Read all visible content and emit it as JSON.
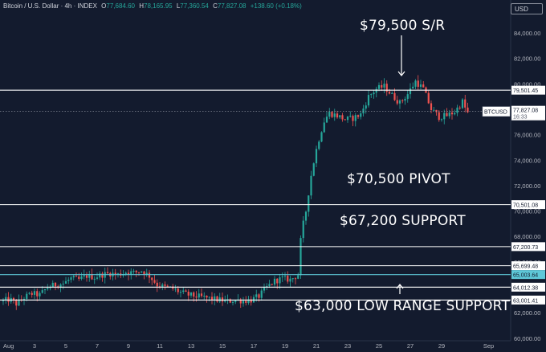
{
  "header": {
    "title": "Bitcoin / U.S. Dollar · 4h · INDEX",
    "open_label": "O",
    "open": "77,684.60",
    "high_label": "H",
    "high": "78,165.95",
    "low_label": "L",
    "low": "77,360.54",
    "close_label": "C",
    "close": "77,827.08",
    "change": "+138.60 (+0.18%)"
  },
  "currency_button": "USD",
  "colors": {
    "background": "#131b2e",
    "up": "#26a69a",
    "down": "#ef5350",
    "level_line": "#ffffff",
    "highlight_level": "#5ec8d8",
    "axis_text": "#b2b5be"
  },
  "annotations": [
    {
      "text": "$79,500 S/R",
      "arrow": "down"
    },
    {
      "text": "$70,500 PIVOT"
    },
    {
      "text": "$67,200 SUPPORT"
    },
    {
      "text": "$63,000 LOW RANGE SUPPORT",
      "arrow": "up"
    }
  ],
  "chart_data": {
    "type": "candlestick",
    "title": "Bitcoin / U.S. Dollar · 4h · INDEX",
    "symbol_label": "BTCUSD",
    "last_price": "77,827.08",
    "countdown": "16:33",
    "ylim": [
      59800,
      85200
    ],
    "y_ticks": [
      {
        "value": 60000,
        "label": "60,000.00"
      },
      {
        "value": 62000,
        "label": "62,000.00"
      },
      {
        "value": 64000,
        "label": "64,000.00"
      },
      {
        "value": 66000,
        "label": "66,000.00"
      },
      {
        "value": 68000,
        "label": "68,000.00"
      },
      {
        "value": 70000,
        "label": "70,000.00"
      },
      {
        "value": 72000,
        "label": "72,000.00"
      },
      {
        "value": 74000,
        "label": "74,000.00"
      },
      {
        "value": 76000,
        "label": "76,000.00"
      },
      {
        "value": 78000,
        "label": "78,000.00"
      },
      {
        "value": 80000,
        "label": "80,000.00"
      },
      {
        "value": 82000,
        "label": "82,000.00"
      },
      {
        "value": 84000,
        "label": "84,000.00"
      }
    ],
    "x_ticks": [
      {
        "day": 1,
        "label": "Aug"
      },
      {
        "day": 3,
        "label": "3"
      },
      {
        "day": 5,
        "label": "5"
      },
      {
        "day": 7,
        "label": "7"
      },
      {
        "day": 9,
        "label": "9"
      },
      {
        "day": 11,
        "label": "11"
      },
      {
        "day": 13,
        "label": "13"
      },
      {
        "day": 15,
        "label": "15"
      },
      {
        "day": 17,
        "label": "17"
      },
      {
        "day": 19,
        "label": "19"
      },
      {
        "day": 21,
        "label": "21"
      },
      {
        "day": 23,
        "label": "23"
      },
      {
        "day": 25,
        "label": "25"
      },
      {
        "day": 27,
        "label": "27"
      },
      {
        "day": 29,
        "label": "29"
      },
      {
        "day": 32,
        "label": "Sep"
      }
    ],
    "levels": [
      {
        "value": 79501.45,
        "label": "79,501.45"
      },
      {
        "value": 70501.08,
        "label": "70,501.08"
      },
      {
        "value": 67200.73,
        "label": "67,200.73"
      },
      {
        "value": 65699.48,
        "label": "65,699.48"
      },
      {
        "value": 65003.64,
        "label": "65,003.64",
        "highlight": true
      },
      {
        "value": 64012.38,
        "label": "64,012.38"
      },
      {
        "value": 63001.41,
        "label": "63,001.41"
      }
    ],
    "price_path": [
      [
        1.0,
        62900
      ],
      [
        1.6,
        63050
      ],
      [
        2.0,
        62700
      ],
      [
        2.5,
        63200
      ],
      [
        3.0,
        63500
      ],
      [
        3.5,
        63400
      ],
      [
        4.0,
        64000
      ],
      [
        4.5,
        64200
      ],
      [
        5.0,
        64300
      ],
      [
        5.5,
        64700
      ],
      [
        6.0,
        64600
      ],
      [
        6.5,
        64900
      ],
      [
        7.0,
        64800
      ],
      [
        7.5,
        65000
      ],
      [
        8.0,
        65100
      ],
      [
        8.5,
        65000
      ],
      [
        9.0,
        65200
      ],
      [
        9.5,
        65150
      ],
      [
        10.0,
        65300
      ],
      [
        10.5,
        64900
      ],
      [
        11.0,
        64200
      ],
      [
        11.5,
        64000
      ],
      [
        12.0,
        63900
      ],
      [
        12.5,
        63600
      ],
      [
        13.0,
        63400
      ],
      [
        13.5,
        63300
      ],
      [
        14.0,
        63200
      ],
      [
        14.5,
        63100
      ],
      [
        15.0,
        63000
      ],
      [
        15.5,
        62900
      ],
      [
        16.0,
        63000
      ],
      [
        16.5,
        62950
      ],
      [
        17.0,
        63000
      ],
      [
        17.5,
        63300
      ],
      [
        18.0,
        64000
      ],
      [
        18.5,
        64500
      ],
      [
        19.0,
        64700
      ],
      [
        19.5,
        64600
      ],
      [
        20.0,
        65000
      ],
      [
        20.2,
        68200
      ],
      [
        20.5,
        70000
      ],
      [
        20.8,
        72600
      ],
      [
        21.1,
        74500
      ],
      [
        21.4,
        76000
      ],
      [
        21.7,
        77200
      ],
      [
        22.0,
        77700
      ],
      [
        22.5,
        77500
      ],
      [
        23.0,
        77200
      ],
      [
        23.5,
        77300
      ],
      [
        24.0,
        77600
      ],
      [
        24.5,
        79000
      ],
      [
        25.0,
        79600
      ],
      [
        25.5,
        79800
      ],
      [
        26.0,
        79100
      ],
      [
        26.5,
        78500
      ],
      [
        27.0,
        79200
      ],
      [
        27.5,
        80200
      ],
      [
        28.0,
        79600
      ],
      [
        28.5,
        78000
      ],
      [
        29.0,
        77400
      ],
      [
        29.5,
        77500
      ],
      [
        30.0,
        77800
      ],
      [
        30.5,
        78600
      ],
      [
        30.8,
        77700
      ]
    ]
  }
}
